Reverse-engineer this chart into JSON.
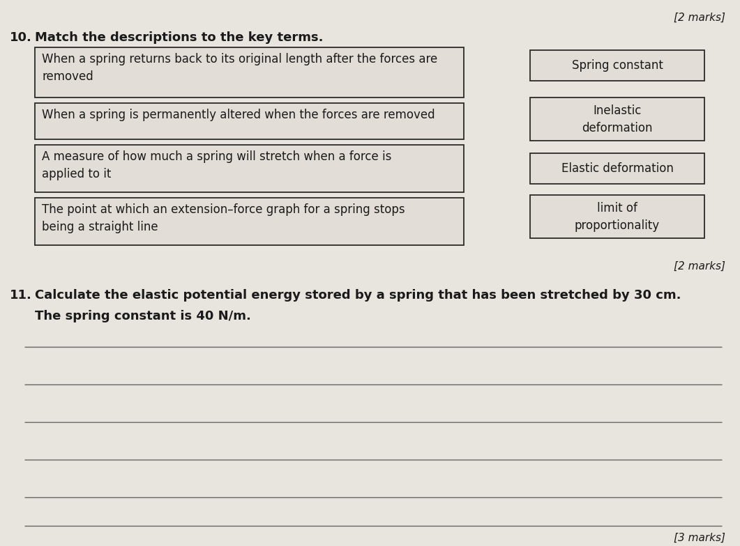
{
  "bg_color": "#e8e4de",
  "title_marks_top": "[2 marks]",
  "q10_label": "10.",
  "q10_instruction": "Match the descriptions to the key terms.",
  "descriptions": [
    "When a spring returns back to its original length after the forces are\nremoved",
    "When a spring is permanently altered when the forces are removed",
    "A measure of how much a spring will stretch when a force is\napplied to it",
    "The point at which an extension–force graph for a spring stops\nbeing a straight line"
  ],
  "key_terms": [
    "Spring constant",
    "Inelastic\ndeformation",
    "Elastic deformation",
    "limit of\nproportionality"
  ],
  "marks_q10": "[2 marks]",
  "q11_label": "11.",
  "q11_text_line1": "Calculate the elastic potential energy stored by a spring that has been stretched by 30 cm.",
  "q11_text_line2": "The spring constant is 40 N/m.",
  "num_answer_lines": 6,
  "marks_q11": "[3 marks]",
  "font_size_q10_instr": 13,
  "font_size_desc": 12,
  "font_size_q11": 13,
  "font_size_marks": 11,
  "font_size_label": 13,
  "text_color": "#1a1a1a",
  "box_edge_color": "#2a2a2a",
  "line_color": "#666666",
  "box_bg": "#e2ddd6"
}
